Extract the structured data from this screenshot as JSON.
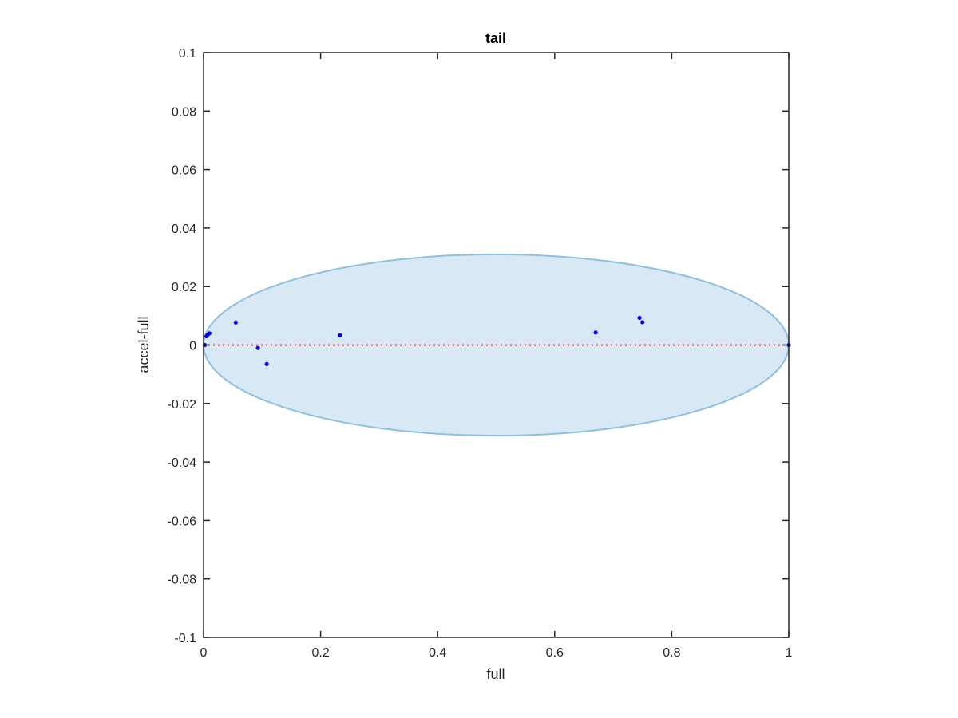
{
  "chart_data": {
    "type": "scatter",
    "title": "tail",
    "xlabel": "full",
    "ylabel": "accel-full",
    "xlim": [
      0,
      1
    ],
    "ylim": [
      -0.1,
      0.1
    ],
    "x_ticks": [
      0,
      0.2,
      0.4,
      0.6,
      0.8,
      1
    ],
    "x_tick_labels": [
      "0",
      "0.2",
      "0.4",
      "0.6",
      "0.8",
      "1"
    ],
    "y_ticks": [
      -0.1,
      -0.08,
      -0.06,
      -0.04,
      -0.02,
      0,
      0.02,
      0.04,
      0.06,
      0.08,
      0.1
    ],
    "y_tick_labels": [
      "-0.1",
      "-0.08",
      "-0.06",
      "-0.04",
      "-0.02",
      "0",
      "0.02",
      "0.04",
      "0.06",
      "0.08",
      "0.1"
    ],
    "grid": false,
    "colors": {
      "points": "#0000ee",
      "ellipse_fill": "#d8e8f4",
      "ellipse_stroke": "#8ec0e0",
      "reference_line": "#ee3333",
      "axes": "#262626"
    },
    "ellipse": {
      "cx": 0.5,
      "cy": 0.0,
      "rx": 0.5,
      "ry": 0.031
    },
    "reference_line": {
      "y": 0,
      "style": "dotted"
    },
    "points": [
      {
        "x": 0.002,
        "y": 0.0
      },
      {
        "x": 0.005,
        "y": 0.003
      },
      {
        "x": 0.007,
        "y": 0.0035
      },
      {
        "x": 0.01,
        "y": 0.004
      },
      {
        "x": 0.055,
        "y": 0.0077
      },
      {
        "x": 0.093,
        "y": -0.001
      },
      {
        "x": 0.108,
        "y": -0.0065
      },
      {
        "x": 0.233,
        "y": 0.0033
      },
      {
        "x": 0.67,
        "y": 0.0043
      },
      {
        "x": 0.745,
        "y": 0.0093
      },
      {
        "x": 0.75,
        "y": 0.0078
      },
      {
        "x": 1.0,
        "y": 0.0
      }
    ]
  }
}
